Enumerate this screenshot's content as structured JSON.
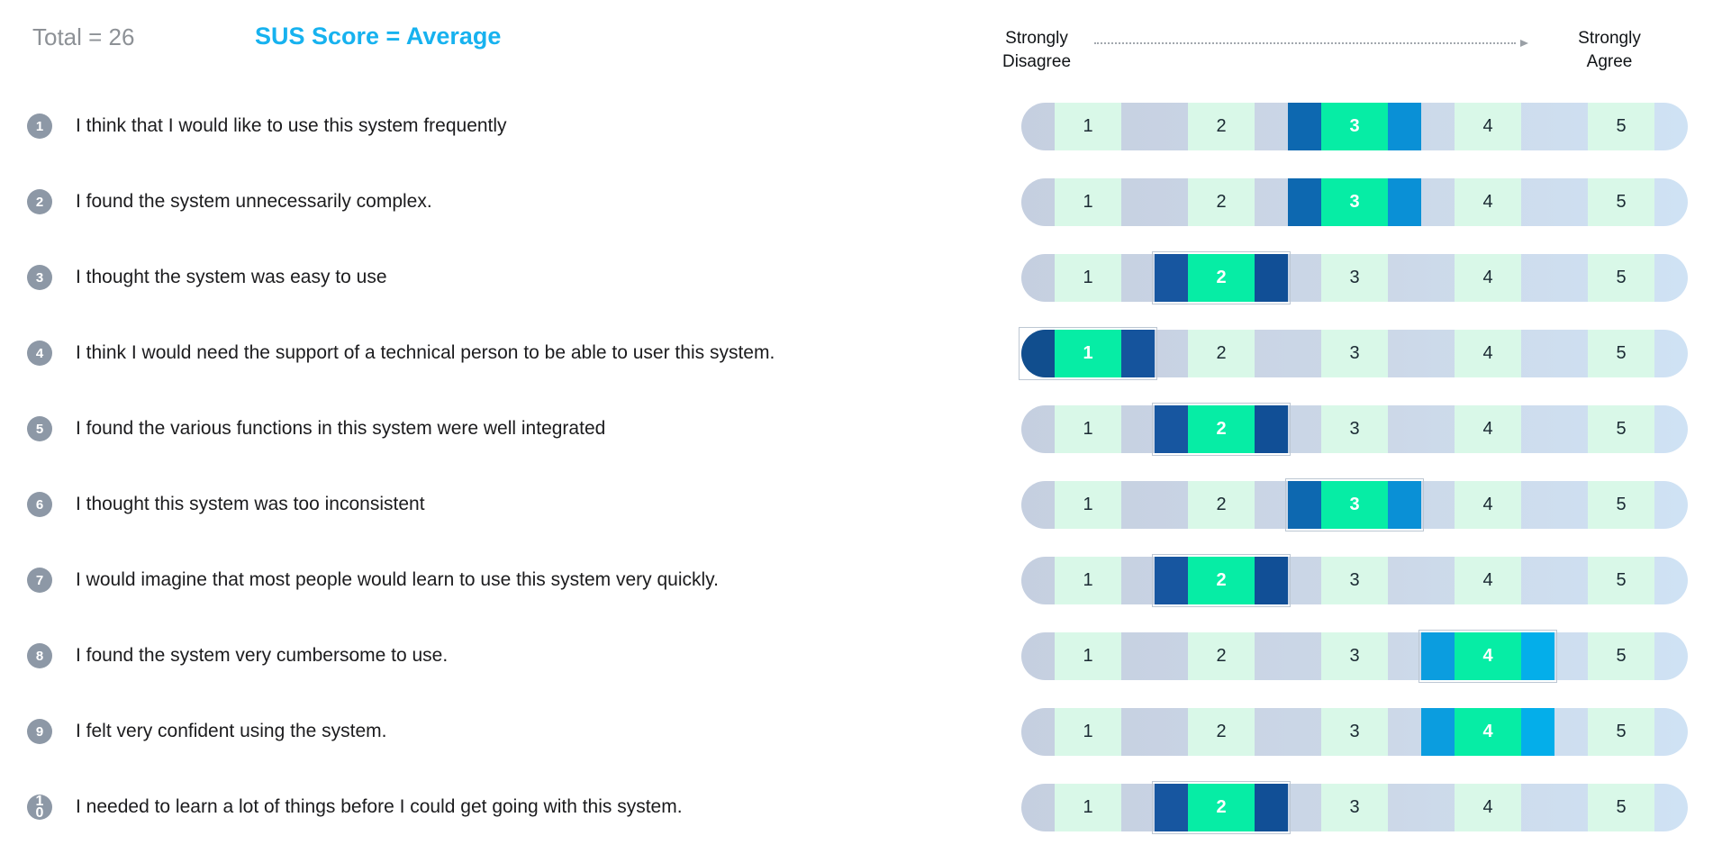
{
  "header": {
    "total_label": "Total = 26",
    "sus_label": "SUS Score = Average",
    "scale_left_line1": "Strongly",
    "scale_left_line2": "Disagree",
    "scale_right_line1": "Strongly",
    "scale_right_line2": "Agree"
  },
  "scale": {
    "min": 1,
    "max": 5
  },
  "colors": {
    "total_text": "#8d9196",
    "sus_accent": "#17b2ef",
    "badge_gray": "#8d98a6",
    "mint_cell": "#d9f8e8",
    "selected_green": "#06eda5",
    "pill_base_left": "#c5cfe0",
    "pill_base_right": "#cfe2f4",
    "selection_blues": {
      "1": {
        "left": "#114e8e",
        "right": "#15549d"
      },
      "2": {
        "left": "#1756a0",
        "right": "#114f96"
      },
      "3": {
        "left": "#0d68b0",
        "right": "#0a90d6"
      },
      "4": {
        "left": "#0b9ddf",
        "right": "#04aeea"
      }
    }
  },
  "rows": [
    {
      "num": "1",
      "question": "I think that I would like to use this system frequently",
      "selected": 3,
      "outlined": false
    },
    {
      "num": "2",
      "question": "I found the system unnecessarily complex.",
      "selected": 3,
      "outlined": false
    },
    {
      "num": "3",
      "question": "I thought the system was easy to use",
      "selected": 2,
      "outlined": true
    },
    {
      "num": "4",
      "question": "I think I would need the support of a technical person to be able to user this system.",
      "selected": 1,
      "outlined": true
    },
    {
      "num": "5",
      "question": "I found the various functions in this system were well integrated",
      "selected": 2,
      "outlined": true
    },
    {
      "num": "6",
      "question": "I thought this system was too inconsistent",
      "selected": 3,
      "outlined": true
    },
    {
      "num": "7",
      "question": "I would imagine that most people would learn to use this system very quickly.",
      "selected": 2,
      "outlined": true
    },
    {
      "num": "8",
      "question": "I found the system very cumbersome to use.",
      "selected": 4,
      "outlined": true
    },
    {
      "num": "9",
      "question": "I felt very confident using the system.",
      "selected": 4,
      "outlined": false
    },
    {
      "num": "10",
      "question": "I needed to learn a lot of things before I could get going with this system.",
      "selected": 2,
      "outlined": true
    }
  ]
}
